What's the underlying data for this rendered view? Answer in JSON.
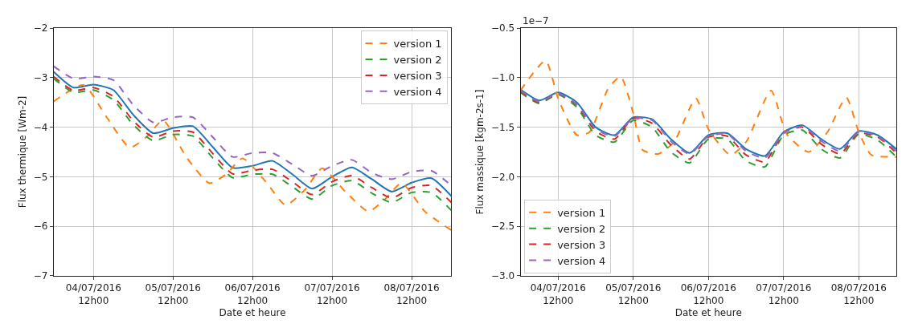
{
  "chart_data": [
    {
      "type": "line",
      "xlabel": "Date et heure",
      "ylabel": "Flux thermique [Wm-2]",
      "grid": true,
      "legend": "top right",
      "x": [
        "2016-07-04T00:00",
        "2016-07-04T06:00",
        "2016-07-04T12:00",
        "2016-07-04T18:00",
        "2016-07-05T00:00",
        "2016-07-05T06:00",
        "2016-07-05T12:00",
        "2016-07-05T18:00",
        "2016-07-06T00:00",
        "2016-07-06T06:00",
        "2016-07-06T12:00",
        "2016-07-06T18:00",
        "2016-07-07T00:00",
        "2016-07-07T06:00",
        "2016-07-07T12:00",
        "2016-07-07T18:00",
        "2016-07-08T00:00",
        "2016-07-08T06:00",
        "2016-07-08T12:00",
        "2016-07-08T18:00",
        "2016-07-09T00:00"
      ],
      "xlim": [
        "2016-07-04T00:00",
        "2016-07-09T00:00"
      ],
      "xticks": [
        {
          "value": "2016-07-04T12:00",
          "label": "04/07/2016\n12h00"
        },
        {
          "value": "2016-07-05T12:00",
          "label": "05/07/2016\n12h00"
        },
        {
          "value": "2016-07-06T12:00",
          "label": "06/07/2016\n12h00"
        },
        {
          "value": "2016-07-07T12:00",
          "label": "07/07/2016\n12h00"
        },
        {
          "value": "2016-07-08T12:00",
          "label": "08/07/2016\n12h00"
        }
      ],
      "ylim": [
        -7,
        -2
      ],
      "yticks": [
        {
          "value": -7,
          "label": "−7"
        },
        {
          "value": -6,
          "label": "−6"
        },
        {
          "value": -5,
          "label": "−5"
        },
        {
          "value": -4,
          "label": "−4"
        },
        {
          "value": -3,
          "label": "−3"
        },
        {
          "value": -2,
          "label": "−2"
        }
      ],
      "series": [
        {
          "color": "#1f77b4",
          "line_style": "solid",
          "values": [
            -2.88,
            -3.2,
            -3.14,
            -3.25,
            -3.75,
            -4.12,
            -4.02,
            -3.98,
            -4.4,
            -4.82,
            -4.78,
            -4.68,
            -4.95,
            -5.24,
            -5.0,
            -4.81,
            -5.05,
            -5.3,
            -5.12,
            -5.03,
            -5.39
          ]
        },
        {
          "name": "version 1",
          "color": "#ff7f0e",
          "line_style": "dashed",
          "x": [
            "2016-07-04T00:00",
            "2016-07-04T09:00",
            "2016-07-04T16:00",
            "2016-07-04T23:00",
            "2016-07-05T04:00",
            "2016-07-05T09:00",
            "2016-07-05T16:00",
            "2016-07-05T23:00",
            "2016-07-06T04:00",
            "2016-07-06T09:00",
            "2016-07-06T16:00",
            "2016-07-06T22:00",
            "2016-07-07T04:00",
            "2016-07-07T09:00",
            "2016-07-07T16:00",
            "2016-07-07T23:00",
            "2016-07-08T04:00",
            "2016-07-08T09:00",
            "2016-07-08T16:00",
            "2016-07-09T00:00"
          ],
          "values": [
            -3.48,
            -3.15,
            -3.8,
            -4.41,
            -4.2,
            -3.86,
            -4.6,
            -5.13,
            -4.95,
            -4.63,
            -5.1,
            -5.57,
            -5.25,
            -4.83,
            -5.3,
            -5.7,
            -5.45,
            -5.13,
            -5.7,
            -6.08
          ]
        },
        {
          "name": "version 2",
          "color": "#2ca02c",
          "line_style": "dashed",
          "values": [
            -3.02,
            -3.3,
            -3.25,
            -3.45,
            -3.95,
            -4.27,
            -4.15,
            -4.18,
            -4.62,
            -5.02,
            -4.95,
            -4.95,
            -5.2,
            -5.45,
            -5.18,
            -5.08,
            -5.33,
            -5.52,
            -5.32,
            -5.32,
            -5.68
          ]
        },
        {
          "name": "version 3",
          "color": "#d62728",
          "line_style": "dashed",
          "values": [
            -2.98,
            -3.26,
            -3.2,
            -3.38,
            -3.87,
            -4.2,
            -4.08,
            -4.1,
            -4.53,
            -4.94,
            -4.87,
            -4.85,
            -5.1,
            -5.36,
            -5.1,
            -4.98,
            -5.22,
            -5.43,
            -5.22,
            -5.18,
            -5.52
          ]
        },
        {
          "name": "version 4",
          "color": "#9467bd",
          "line_style": "dashed",
          "values": [
            -2.77,
            -3.02,
            -2.98,
            -3.05,
            -3.55,
            -3.9,
            -3.8,
            -3.8,
            -4.2,
            -4.6,
            -4.52,
            -4.52,
            -4.75,
            -4.98,
            -4.78,
            -4.66,
            -4.92,
            -5.05,
            -4.9,
            -4.88,
            -5.18
          ]
        }
      ]
    },
    {
      "type": "line",
      "xlabel": "Date et heure",
      "ylabel": "Flux massique [kgm-2s-1]",
      "grid": true,
      "legend": "bottom left",
      "annotations": [
        "1e−7"
      ],
      "x": [
        "2016-07-04T00:00",
        "2016-07-04T06:00",
        "2016-07-04T12:00",
        "2016-07-04T18:00",
        "2016-07-05T00:00",
        "2016-07-05T06:00",
        "2016-07-05T12:00",
        "2016-07-05T18:00",
        "2016-07-06T00:00",
        "2016-07-06T06:00",
        "2016-07-06T12:00",
        "2016-07-06T18:00",
        "2016-07-07T00:00",
        "2016-07-07T06:00",
        "2016-07-07T12:00",
        "2016-07-07T18:00",
        "2016-07-08T00:00",
        "2016-07-08T06:00",
        "2016-07-08T12:00",
        "2016-07-08T18:00",
        "2016-07-09T00:00"
      ],
      "xlim": [
        "2016-07-04T00:00",
        "2016-07-09T00:00"
      ],
      "xticks": [
        {
          "value": "2016-07-04T12:00",
          "label": "04/07/2016\n12h00"
        },
        {
          "value": "2016-07-05T12:00",
          "label": "05/07/2016\n12h00"
        },
        {
          "value": "2016-07-06T12:00",
          "label": "06/07/2016\n12h00"
        },
        {
          "value": "2016-07-07T12:00",
          "label": "07/07/2016\n12h00"
        },
        {
          "value": "2016-07-08T12:00",
          "label": "08/07/2016\n12h00"
        }
      ],
      "ylim": [
        -3,
        -0.5
      ],
      "yticks": [
        {
          "value": -3,
          "label": "−3.0"
        },
        {
          "value": -2.5,
          "label": "−2.5"
        },
        {
          "value": -2,
          "label": "−2.0"
        },
        {
          "value": -1.5,
          "label": "−1.5"
        },
        {
          "value": -1,
          "label": "−1.0"
        },
        {
          "value": -0.5,
          "label": "−0.5"
        }
      ],
      "series": [
        {
          "color": "#1f77b4",
          "line_style": "solid",
          "values": [
            -1.12,
            -1.23,
            -1.15,
            -1.25,
            -1.5,
            -1.58,
            -1.4,
            -1.42,
            -1.62,
            -1.76,
            -1.58,
            -1.56,
            -1.72,
            -1.79,
            -1.55,
            -1.48,
            -1.62,
            -1.72,
            -1.54,
            -1.58,
            -1.72
          ]
        },
        {
          "name": "version 1",
          "color": "#ff7f0e",
          "line_style": "dashed",
          "x": [
            "2016-07-04T00:00",
            "2016-07-04T08:00",
            "2016-07-04T12:00",
            "2016-07-04T18:00",
            "2016-07-04T22:00",
            "2016-07-05T04:00",
            "2016-07-05T08:00",
            "2016-07-05T12:00",
            "2016-07-05T15:00",
            "2016-07-05T20:00",
            "2016-07-06T01:00",
            "2016-07-06T08:00",
            "2016-07-06T12:00",
            "2016-07-06T19:00",
            "2016-07-07T00:00",
            "2016-07-07T08:00",
            "2016-07-07T13:00",
            "2016-07-07T20:00",
            "2016-07-08T02:00",
            "2016-07-08T08:00",
            "2016-07-08T12:00",
            "2016-07-08T16:00",
            "2016-07-08T22:00",
            "2016-07-09T00:00"
          ],
          "values": [
            -1.13,
            -0.83,
            -1.21,
            -1.58,
            -1.55,
            -1.11,
            -0.99,
            -1.36,
            -1.73,
            -1.77,
            -1.65,
            -1.21,
            -1.52,
            -1.78,
            -1.65,
            -1.13,
            -1.57,
            -1.75,
            -1.55,
            -1.2,
            -1.55,
            -1.78,
            -1.8,
            -1.8
          ]
        },
        {
          "name": "version 2",
          "color": "#2ca02c",
          "line_style": "dashed",
          "values": [
            -1.15,
            -1.26,
            -1.17,
            -1.3,
            -1.58,
            -1.65,
            -1.43,
            -1.5,
            -1.75,
            -1.86,
            -1.62,
            -1.62,
            -1.84,
            -1.9,
            -1.58,
            -1.53,
            -1.72,
            -1.81,
            -1.57,
            -1.63,
            -1.8
          ]
        },
        {
          "name": "version 3",
          "color": "#d62728",
          "line_style": "dashed",
          "values": [
            -1.14,
            -1.25,
            -1.16,
            -1.28,
            -1.54,
            -1.62,
            -1.41,
            -1.46,
            -1.68,
            -1.82,
            -1.6,
            -1.59,
            -1.78,
            -1.85,
            -1.56,
            -1.5,
            -1.67,
            -1.77,
            -1.56,
            -1.6,
            -1.76
          ]
        },
        {
          "name": "version 4",
          "color": "#9467bd",
          "line_style": "dashed",
          "values": [
            -1.13,
            -1.24,
            -1.16,
            -1.27,
            -1.52,
            -1.59,
            -1.41,
            -1.43,
            -1.64,
            -1.77,
            -1.59,
            -1.57,
            -1.74,
            -1.81,
            -1.56,
            -1.49,
            -1.64,
            -1.74,
            -1.55,
            -1.59,
            -1.74
          ]
        }
      ]
    }
  ]
}
